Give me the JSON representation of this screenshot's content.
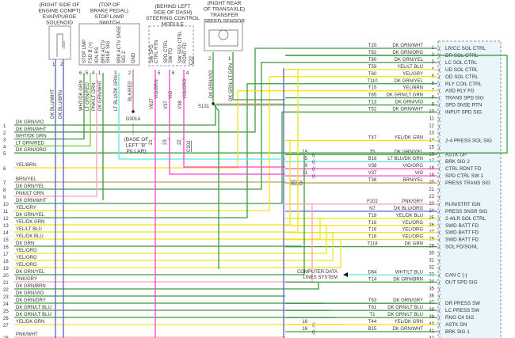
{
  "colors": {
    "DK GRN": "#3d9a3d",
    "LT GRN": "#6fcf3a",
    "YEL": "#f2e41a",
    "VIO": "#ff3fd0",
    "DK BLU": "#5a64b8",
    "PNK": "#f5a3b5",
    "BRN": "#bca35e",
    "LT BLU": "#5fe8dc",
    "WHT": "#9aa59a",
    "BLK": "#c07a7a",
    "module_fill": "#e8f5fb"
  },
  "components": {
    "evap": {
      "caption": [
        "(RIGHT SIDE OF",
        "ENGINE COMPT)",
        "EVAP/PURGE",
        "SOLENOID"
      ],
      "pins": [
        {
          "num": "1",
          "wire": "DK BLU/WHT"
        },
        {
          "num": "2",
          "wire": "DK BLU/BRN"
        }
      ]
    },
    "stop_lamp": {
      "caption": [
        "(TOP OF",
        "BRAKE PEDAL)",
        "STOP LAMP",
        "SWITCH"
      ],
      "pins": [
        {
          "num": "6",
          "name": "STOP LMP",
          "wire": "WHT/DK GRN"
        },
        {
          "num": "5",
          "name": "FSD B (+)",
          "wire": "LT GRN/RED"
        },
        {
          "num": "4",
          "name": "IGN RS",
          "wire": "PNK/LT GRN"
        },
        {
          "num": "1",
          "name": "BRK ACTV SNSE SIG",
          "wire": "DK GRN/WHT"
        },
        {
          "num": "3",
          "name": "BRK ACTV SNSE SIG 2",
          "wire": "LT BLU/DK GRN"
        },
        {
          "num": "2",
          "name": "GND",
          "wire": "BLK/RED"
        }
      ]
    },
    "ground": {
      "label": "G301A",
      "caption": [
        "(BASE OF",
        "LEFT \"B\"",
        "PILLAR)"
      ]
    },
    "steering": {
      "caption": [
        "(BEHIND LEFT",
        "SIDE OF DASH)",
        "STEERING CONTROL",
        "MODULE"
      ],
      "connector": "C22",
      "pins": [
        {
          "num": "5",
          "name": "SW SPD CTRL RTN",
          "circuit": "V637",
          "wire": "VIO/BRN",
          "c202": "21"
        },
        {
          "num": "6",
          "name": "SPD CTRL SW FD",
          "circuit": "V37",
          "wire": "VIO",
          "c202": "23"
        },
        {
          "num": "4",
          "name": "SW SPD CTRL RDNT FD",
          "circuit": "V38",
          "wire": "VIO/ORG",
          "c202": "22"
        }
      ],
      "c202_label": "C202"
    },
    "sensor": {
      "caption": [
        "(RIGHT REAR",
        "OF TRANSAXLE)",
        "TRANSFER",
        "SPEED SENSOR"
      ],
      "pins": [
        {
          "num": "2",
          "wire": "DK GRN/VIO"
        },
        {
          "num": "1",
          "wire": "DK GRN/ LT GRN"
        }
      ],
      "splice": "S131"
    },
    "data_lines": [
      "COMPUTER DATA",
      "LINES SYSTEM"
    ]
  },
  "left_rows": [
    {
      "num": "1",
      "wire": "DK GRN/VIO",
      "to": 9
    },
    {
      "num": "2",
      "wire": "DK GRN/WHT",
      "to": 1
    },
    {
      "num": "3",
      "wire": "WHT/DK GRN",
      "from": "6"
    },
    {
      "num": "4",
      "wire": "LT GRN/RED",
      "from": "5"
    },
    {
      "num": "5",
      "wire": "DK GRN/ORG",
      "to": 2
    },
    {
      "num": "6",
      "wire": "YEL/BRN",
      "to": 7
    },
    {
      "num": "7",
      "wire": "BRN/YEL",
      "to": 20
    },
    {
      "num": "8",
      "wire": "DK GRN/YEL",
      "to": 3
    },
    {
      "num": "9",
      "wire": "PNK/LT GRN",
      "from": "4"
    },
    {
      "num": "10",
      "wire": "DK GRN/WHT",
      "to": 10
    },
    {
      "num": "11",
      "wire": "YEL/GRY",
      "to": 5
    },
    {
      "num": "12",
      "wire": "DK GRN/YEL",
      "to": 6
    },
    {
      "num": "13",
      "wire": "YEL/DK GRN",
      "to": 14
    },
    {
      "num": "14",
      "wire": "YEL/LT BLU",
      "to": 4
    },
    {
      "num": "15",
      "wire": "YEL/DK BLU",
      "to": 25
    },
    {
      "num": "16",
      "wire": "DK GRN",
      "to": 29
    },
    {
      "num": "17",
      "wire": "YEL/ORG",
      "to": 26
    },
    {
      "num": "18",
      "wire": "YEL/ORG",
      "to": 27
    },
    {
      "num": "19",
      "wire": "YEL/ORG",
      "to": 28
    },
    {
      "num": "20",
      "wire": "DK GRN/YEL",
      "to": 16
    },
    {
      "num": "21",
      "wire": "PNK/GRY",
      "to": 23
    },
    {
      "num": "22",
      "wire": "DK GRN/BRN",
      "to": 34
    },
    {
      "num": "23",
      "wire": "DK GRN/VIO"
    },
    {
      "num": "24",
      "wire": "DK GRN/GRY",
      "to": 37
    },
    {
      "num": "25",
      "wire": "DK GRN/LT BLU",
      "to": 38
    },
    {
      "num": "26",
      "wire": "DK GRN/LT BLU",
      "to": 39
    },
    {
      "num": "27",
      "wire": "YEL/DK GRN",
      "to": 40
    },
    {
      "num": "28",
      "wire": "PNK/WHT"
    }
  ],
  "pins": [
    {
      "pin": "1",
      "circuit": "T20",
      "wire": "DK GRN/WHT",
      "label": "LR/CC SOL CTRL"
    },
    {
      "pin": "2",
      "circuit": "T82",
      "wire": "DK GRN/ORG",
      "label": "DR SOL CTRL"
    },
    {
      "pin": "3",
      "circuit": "T80",
      "wire": "DK GRN/YEL",
      "label": "LC SOL CTRL"
    },
    {
      "pin": "4",
      "circuit": "T59",
      "wire": "YEL/LT BLU",
      "label": "UD SOL CTRL"
    },
    {
      "pin": "5",
      "circuit": "T60",
      "wire": "YEL/GRY",
      "label": "OD SOL CTRL"
    },
    {
      "pin": "6",
      "circuit": "T110",
      "wire": "DK GRN/YEL",
      "label": "RLY COIL CTRL"
    },
    {
      "pin": "7",
      "circuit": "T15",
      "wire": "YEL/BRN",
      "label": "ASD RLY FD"
    },
    {
      "pin": "8",
      "circuit": "T85",
      "wire": "DK GRN/LT GRN",
      "label": "TRANS SPD SIG"
    },
    {
      "pin": "9",
      "circuit": "T13",
      "wire": "DK GRN/VIO",
      "label": "SPD SNSE RTN"
    },
    {
      "pin": "10",
      "circuit": "T52",
      "wire": "DK GRN/WHT",
      "label": "INPUT SPD SIG"
    },
    {
      "pin": "11"
    },
    {
      "pin": "12"
    },
    {
      "pin": "13"
    },
    {
      "pin": "14",
      "circuit": "T47",
      "wire": "YEL/DK GRN",
      "label": "2-4 PRESS SOL SIG"
    },
    {
      "pin": "15"
    },
    {
      "pin": "16",
      "circuit": "T5",
      "wire": "DK GRN/YEL",
      "label": "ASTK UP",
      "conn": "19"
    },
    {
      "pin": "17",
      "circuit": "B16",
      "wire": "LT BLU/DK GRN",
      "label": "BRK SIG 2",
      "conn": "5"
    },
    {
      "pin": "18",
      "circuit": "V38",
      "wire": "VIO/ORG",
      "label": "CTRL RDNT FD",
      "conn": "9"
    },
    {
      "pin": "19",
      "circuit": "V37",
      "wire": "VIO",
      "label": "SPD CTRL SW 1",
      "conn": "11"
    },
    {
      "pin": "20",
      "circuit": "T38",
      "wire": "BRN/YEL",
      "label": "PRESS TRANS SIG",
      "conn": "I201A"
    },
    {
      "pin": "21"
    },
    {
      "pin": "22"
    },
    {
      "pin": "23",
      "circuit": "F202",
      "wire": "PNK/GRY",
      "label": "RUN/STRT IGN"
    },
    {
      "pin": "24",
      "circuit": "N7",
      "wire": "DK BLU/ORG",
      "label": "PRESS SNSR SIG"
    },
    {
      "pin": "25",
      "circuit": "T19",
      "wire": "YEL/DK BLU",
      "label": "2-4/LR SOL CTRL"
    },
    {
      "pin": "26",
      "circuit": "T16",
      "wire": "YEL/ORG",
      "label": "SWD BATT FD"
    },
    {
      "pin": "27",
      "circuit": "T16",
      "wire": "YEL/ORG",
      "label": "SWD BATT FD"
    },
    {
      "pin": "28",
      "circuit": "T16",
      "wire": "YEL/ORG",
      "label": "SWD BATT FD"
    },
    {
      "pin": "29",
      "circuit": "T118",
      "wire": "DK GRN",
      "label": "SOL FD/SGNL"
    },
    {
      "pin": "30"
    },
    {
      "pin": "31"
    },
    {
      "pin": "32"
    },
    {
      "pin": "33",
      "circuit": "D64",
      "wire": "WHT/LT BLU",
      "label": "CAN C (-)"
    },
    {
      "pin": "34",
      "circuit": "T14",
      "wire": "DK GRN/BRN",
      "label": "OUT SPD SIG"
    },
    {
      "pin": "35"
    },
    {
      "pin": "36"
    },
    {
      "pin": "37",
      "circuit": "T63",
      "wire": "DK GRN/GRY",
      "label": "DR PRESS SW"
    },
    {
      "pin": "38",
      "circuit": "T61",
      "wire": "DK GRN/LT BLU",
      "label": "LC PRESS SW"
    },
    {
      "pin": "39",
      "circuit": "T1",
      "wire": "DK GRN/LT BLU",
      "label": "RNG C4 SIG"
    },
    {
      "pin": "40",
      "circuit": "T44",
      "wire": "YEL/DK GRN",
      "label": "ASTK DN",
      "conn": "18"
    },
    {
      "pin": "41",
      "circuit": "B15",
      "wire": "DK GRN/WHT",
      "label": "BRK SIG 1",
      "conn": "16"
    },
    {
      "pin": "42"
    }
  ]
}
